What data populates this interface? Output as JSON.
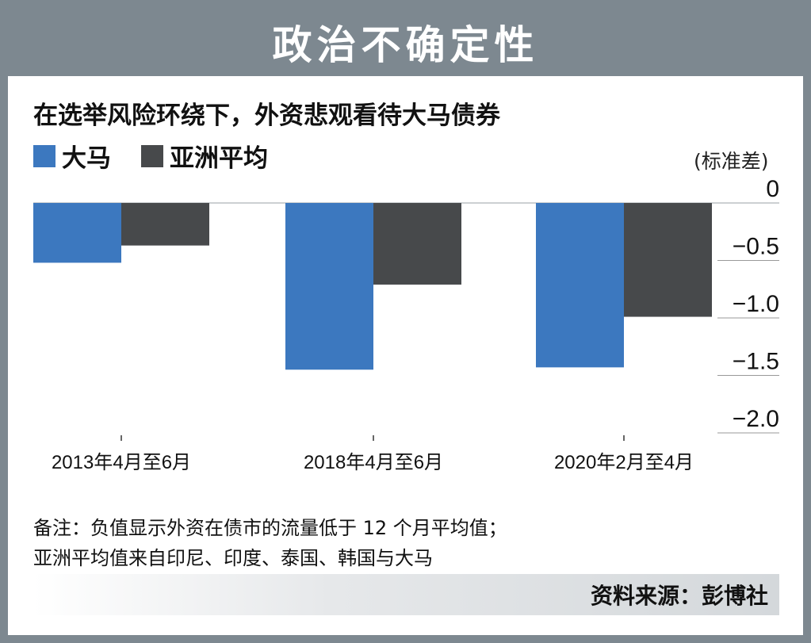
{
  "title": "政治不确定性",
  "subtitle": "在选举风险环绕下，外资悲观看待大马债券",
  "unit": "(标准差)",
  "note_lines": [
    "备注：负值显示外资在债市的流量低于 12 个月平均值；",
    "亚洲平均值来自印尼、印度、泰国、韩国与大马"
  ],
  "source": "资料来源：彭博社",
  "colors": {
    "malaysia": "#3c78bf",
    "asia": "#47494b",
    "frame": "#7d8890"
  },
  "chart_data": {
    "type": "bar",
    "categories": [
      "2013年4月至6月",
      "2018年4月至6月",
      "2020年2月至4月"
    ],
    "series": [
      {
        "name": "大马",
        "values": [
          -0.52,
          -1.45,
          -1.43
        ]
      },
      {
        "name": "亚洲平均",
        "values": [
          -0.37,
          -0.71,
          -0.99
        ]
      }
    ],
    "yticks": [
      "0",
      "−0.5",
      "−1.0",
      "−1.5",
      "−2.0"
    ],
    "ytick_values": [
      0,
      -0.5,
      -1.0,
      -1.5,
      -2.0
    ],
    "ylim": [
      -2.0,
      0
    ],
    "legend": "top-left",
    "grid": false
  }
}
